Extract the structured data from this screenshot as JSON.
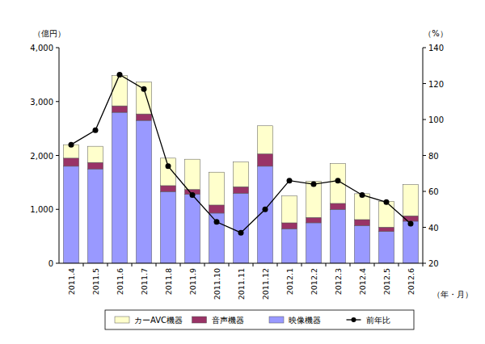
{
  "chart_data": {
    "type": "bar",
    "stacked": true,
    "grid": false,
    "legend": "bottom",
    "y_label": "（億円）",
    "y2_label": "（%）",
    "x_label": "（年・月）",
    "categories": [
      "2011.4",
      "2011.5",
      "2011.6",
      "2011.7",
      "2011.8",
      "2011.9",
      "2011.10",
      "2011.11",
      "2011.12",
      "2012.1",
      "2012.2",
      "2012.3",
      "2012.4",
      "2012.5",
      "2012.6"
    ],
    "ylim": [
      0,
      4000
    ],
    "yticks": [
      0,
      {
        "value": 1000,
        "label": "1,000"
      },
      {
        "value": 2000,
        "label": "2,000"
      },
      {
        "value": 3000,
        "label": "3,000"
      },
      {
        "value": 4000,
        "label": "4,000"
      }
    ],
    "y2lim": [
      20,
      140
    ],
    "y2ticks": [
      20,
      40,
      60,
      80,
      100,
      120,
      140
    ],
    "series": [
      {
        "name": "カーAVC機器",
        "type": "bar",
        "color": "#ffffcc",
        "values": [
          250,
          300,
          560,
          590,
          510,
          560,
          610,
          460,
          520,
          500,
          670,
          740,
          480,
          480,
          580
        ]
      },
      {
        "name": "音声機器",
        "type": "bar",
        "color": "#993366",
        "values": [
          150,
          120,
          120,
          120,
          110,
          90,
          150,
          120,
          230,
          110,
          100,
          110,
          110,
          80,
          100
        ]
      },
      {
        "name": "映像機器",
        "type": "bar",
        "color": "#9999ff",
        "values": [
          1800,
          1750,
          2800,
          2650,
          1330,
          1280,
          930,
          1300,
          1800,
          640,
          750,
          1000,
          700,
          590,
          780
        ]
      },
      {
        "name": "前年比",
        "type": "line",
        "axis": "y2",
        "color": "#000000",
        "marker": "circle",
        "line_style": "solid",
        "values": [
          86,
          94,
          125,
          117,
          74,
          58,
          43,
          37,
          50,
          66,
          64,
          66,
          58,
          54,
          42
        ]
      }
    ]
  }
}
